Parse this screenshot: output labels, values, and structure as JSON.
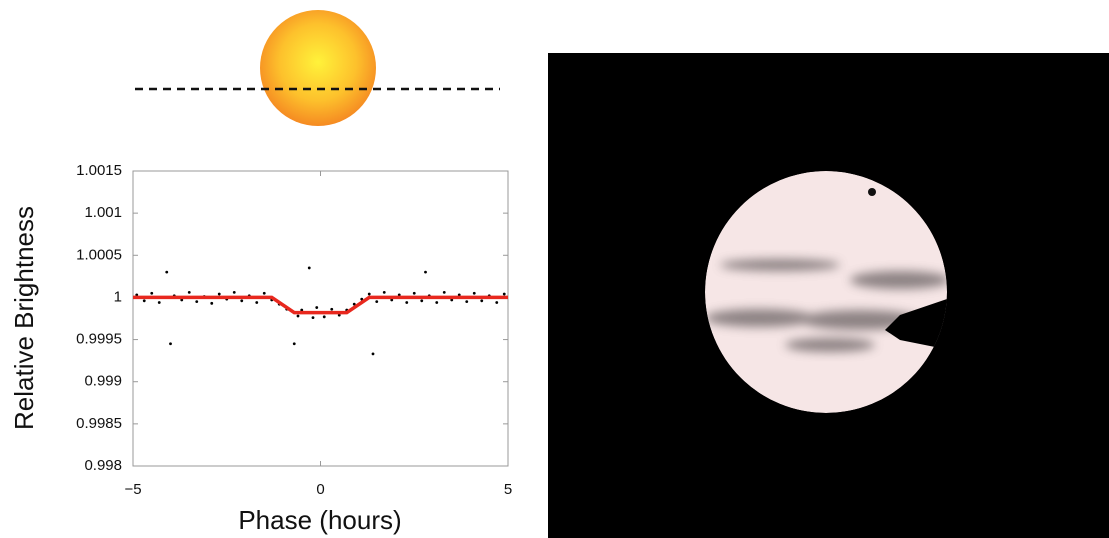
{
  "chart_data": {
    "type": "scatter",
    "xlabel": "Phase (hours)",
    "ylabel": "Relative Brightness",
    "xlim": [
      -5,
      5
    ],
    "xticks": [
      {
        "value": -5,
        "label": "−5"
      },
      0,
      5
    ],
    "ylim": [
      0.998,
      1.0015
    ],
    "yticks": [
      0.998,
      0.9985,
      0.999,
      0.9995,
      1,
      1.0005,
      1.001,
      1.0015
    ],
    "grid": false,
    "series": [
      {
        "type": "scatter",
        "color": "#000000",
        "x": [
          -4.9,
          -4.7,
          -4.5,
          -4.3,
          -4.1,
          -4.0,
          -3.9,
          -3.7,
          -3.5,
          -3.3,
          -3.1,
          -2.9,
          -2.7,
          -2.5,
          -2.3,
          -2.1,
          -1.9,
          -1.7,
          -1.5,
          -1.3,
          -1.1,
          -0.9,
          -0.7,
          -0.6,
          -0.5,
          -0.3,
          -0.2,
          -0.1,
          0.1,
          0.3,
          0.5,
          0.7,
          0.9,
          1.1,
          1.3,
          1.4,
          1.5,
          1.7,
          1.9,
          2.1,
          2.3,
          2.5,
          2.7,
          2.8,
          2.9,
          3.1,
          3.3,
          3.5,
          3.7,
          3.9,
          4.1,
          4.3,
          4.5,
          4.7,
          4.9
        ],
        "values": [
          1.00003,
          0.99996,
          1.00005,
          0.99994,
          1.0003,
          0.99945,
          1.00002,
          0.99997,
          1.00006,
          0.99995,
          1.00001,
          0.99993,
          1.00004,
          0.99998,
          1.00006,
          0.99996,
          1.00002,
          0.99994,
          1.00005,
          0.99997,
          0.99992,
          0.99986,
          0.99945,
          0.99978,
          0.99985,
          1.00035,
          0.99976,
          0.99988,
          0.99977,
          0.99986,
          0.99979,
          0.99985,
          0.99992,
          0.99998,
          1.00004,
          0.99933,
          0.99995,
          1.00006,
          0.99997,
          1.00003,
          0.99994,
          1.00005,
          0.99996,
          1.0003,
          1.00002,
          0.99994,
          1.00006,
          0.99997,
          1.00003,
          0.99995,
          1.00005,
          0.99996,
          1.00002,
          0.99994,
          1.00004
        ]
      },
      {
        "type": "line",
        "color": "#e8281e",
        "x": [
          -5,
          -1.3,
          -0.7,
          0.7,
          1.3,
          5
        ],
        "values": [
          1,
          1,
          0.99982,
          0.99982,
          1,
          1
        ]
      }
    ]
  }
}
